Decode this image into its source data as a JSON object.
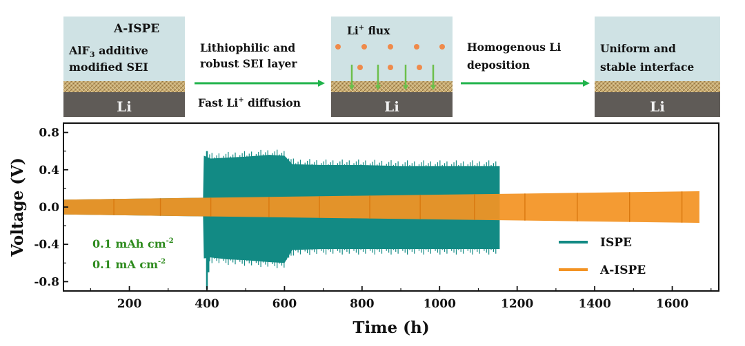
{
  "schematic": {
    "panel1": {
      "title": "A-ISPE",
      "line1_a": "AlF",
      "line1_sub": "3",
      "line1_b": " additive",
      "line2": "modified SEI",
      "metal": "Li"
    },
    "arrow1": {
      "top1": "Lithiophilic and",
      "top2": "robust SEI layer",
      "bottom_a": "Fast Li",
      "bottom_sup": "+",
      "bottom_b": " diffusion"
    },
    "panel2": {
      "title_a": "Li",
      "title_sup": "+",
      "title_b": " flux",
      "metal": "Li"
    },
    "arrow2": {
      "top1": "Homogenous  Li",
      "top2": "deposition"
    },
    "panel3": {
      "line1": "Uniform and",
      "line2": "stable interface",
      "metal": "Li"
    },
    "colors": {
      "sky": "#cfe2e4",
      "sei": "#c9ac72",
      "metal": "#5f5b57",
      "arrow": "#1fb34a",
      "ion": "#ef8a4a",
      "flux_arrow": "#6cbf4a"
    }
  },
  "chart_data": {
    "type": "area",
    "xlabel": "Time (h)",
    "ylabel": "Voltage (V)",
    "xlim": [
      30,
      1720
    ],
    "ylim": [
      -0.9,
      0.9
    ],
    "xticks": [
      200,
      400,
      600,
      800,
      1000,
      1200,
      1400,
      1600
    ],
    "yticks": [
      -0.8,
      -0.4,
      0.0,
      0.4,
      0.8
    ],
    "grid": false,
    "legend_position": "bottom-right",
    "annotation": {
      "line1_a": "0.1 mAh cm",
      "line1_sup": "-2",
      "line2_a": "0.1 mA cm",
      "line2_sup": "-2",
      "color": "#2e8b1e"
    },
    "series": [
      {
        "name": "ISPE",
        "color": "#128a84",
        "envelope": {
          "x": [
            30,
            390,
            392,
            410,
            450,
            500,
            560,
            600,
            620,
            700,
            800,
            900,
            1000,
            1100,
            1155
          ],
          "upper": [
            0.08,
            0.1,
            0.55,
            0.52,
            0.53,
            0.54,
            0.56,
            0.55,
            0.46,
            0.45,
            0.45,
            0.44,
            0.44,
            0.44,
            0.44
          ],
          "lower": [
            -0.08,
            -0.1,
            -0.55,
            -0.54,
            -0.56,
            -0.57,
            -0.59,
            -0.6,
            -0.46,
            -0.45,
            -0.45,
            -0.45,
            -0.45,
            -0.45,
            -0.45
          ]
        },
        "spikes": [
          {
            "x": 400,
            "max": 0.6,
            "min": -0.88
          },
          {
            "x": 404,
            "max": 0.45,
            "min": -0.7
          }
        ]
      },
      {
        "name": "A-ISPE",
        "color": "#f39323",
        "envelope": {
          "x": [
            30,
            1670
          ],
          "upper": [
            0.08,
            0.17
          ],
          "lower": [
            -0.08,
            -0.17
          ]
        },
        "pulse_x": [
          160,
          280,
          410,
          560,
          690,
          820,
          950,
          1090,
          1220,
          1355,
          1490,
          1625
        ]
      }
    ]
  }
}
